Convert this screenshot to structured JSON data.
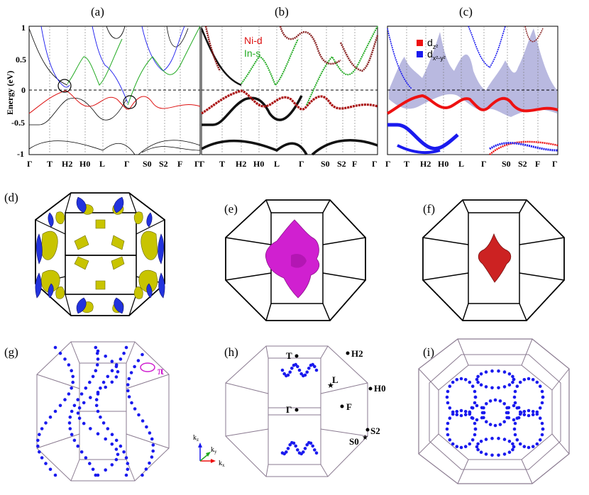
{
  "panels": {
    "a": "(a)",
    "b": "(b)",
    "c": "(c)",
    "d": "(d)",
    "e": "(e)",
    "f": "(f)",
    "g": "(g)",
    "h": "(h)",
    "i": "(i)"
  },
  "band_axis": {
    "ylabel": "Energy (eV)",
    "yticks": [
      "1",
      "0.5",
      "0",
      "-0.5",
      "-1"
    ],
    "kpoints": [
      "Γ",
      "T",
      "H2",
      "H0",
      "L",
      "Γ",
      "S0",
      "S2",
      "F",
      "Γ"
    ]
  },
  "legend_b": {
    "ni": "Ni-d",
    "in": "In-s"
  },
  "legend_c": {
    "dz": "d",
    "dz_sub": "z²",
    "dxy": "d",
    "dxy_sub": "x²-y²"
  },
  "g_label": "π",
  "h_labels": {
    "T": "T",
    "H2": "H2",
    "L": "L",
    "H0": "H0",
    "G": "Γ",
    "F": "F",
    "S2": "S2",
    "S0": "S0"
  },
  "axes_labels": {
    "kz": "k",
    "kz_sub": "z",
    "ky": "k",
    "ky_sub": "y",
    "kx": "k",
    "kx_sub": "x"
  },
  "colors": {
    "red": "#dd1111",
    "green": "#22aa22",
    "blue": "#1a1aee",
    "yellow": "#c8c400",
    "magenta": "#d020d0",
    "darkred": "#cc2222",
    "lavender": "#b9b9e0",
    "bzline": "#8a7a90"
  }
}
